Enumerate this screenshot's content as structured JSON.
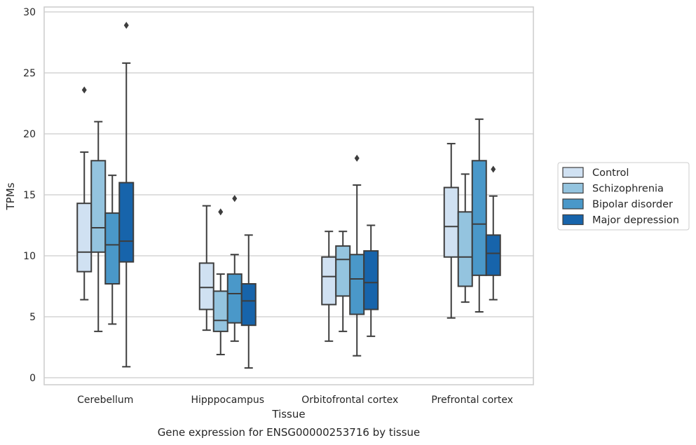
{
  "chart_data": {
    "type": "box",
    "xlabel": "Tissue",
    "ylabel": "TPMs",
    "caption": "Gene expression for ENSG00000253716 by tissue",
    "ylim": [
      -0.5,
      30.3
    ],
    "yticks": [
      0,
      5,
      10,
      15,
      20,
      25,
      30
    ],
    "grid": "horizontal",
    "legend_position": "right-outside",
    "categories": [
      "Cerebellum",
      "Hipppocampus",
      "Orbitofrontal cortex",
      "Prefrontal cortex"
    ],
    "series": [
      {
        "name": "Control",
        "color": "#d0e1f2",
        "boxes": [
          {
            "whislo": 6.4,
            "q1": 8.7,
            "med": 10.3,
            "q3": 14.3,
            "whishi": 18.5,
            "fliers": [
              23.6
            ]
          },
          {
            "whislo": 3.9,
            "q1": 5.6,
            "med": 7.4,
            "q3": 9.4,
            "whishi": 14.1,
            "fliers": []
          },
          {
            "whislo": 3.0,
            "q1": 6.0,
            "med": 8.3,
            "q3": 9.9,
            "whishi": 12.0,
            "fliers": []
          },
          {
            "whislo": 4.9,
            "q1": 9.9,
            "med": 12.4,
            "q3": 15.6,
            "whishi": 19.2,
            "fliers": []
          }
        ]
      },
      {
        "name": "Schizophrenia",
        "color": "#94c4df",
        "boxes": [
          {
            "whislo": 3.8,
            "q1": 10.3,
            "med": 12.3,
            "q3": 17.8,
            "whishi": 21.0,
            "fliers": []
          },
          {
            "whislo": 1.9,
            "q1": 3.8,
            "med": 4.7,
            "q3": 7.1,
            "whishi": 8.5,
            "fliers": [
              13.6
            ]
          },
          {
            "whislo": 3.8,
            "q1": 6.7,
            "med": 9.7,
            "q3": 10.8,
            "whishi": 12.0,
            "fliers": []
          },
          {
            "whislo": 6.2,
            "q1": 7.5,
            "med": 9.9,
            "q3": 13.6,
            "whishi": 16.7,
            "fliers": []
          }
        ]
      },
      {
        "name": "Bipolar disorder",
        "color": "#4a98c9",
        "boxes": [
          {
            "whislo": 4.4,
            "q1": 7.7,
            "med": 10.9,
            "q3": 13.5,
            "whishi": 16.6,
            "fliers": []
          },
          {
            "whislo": 3.0,
            "q1": 4.5,
            "med": 6.9,
            "q3": 8.5,
            "whishi": 10.1,
            "fliers": [
              14.7
            ]
          },
          {
            "whislo": 1.8,
            "q1": 5.2,
            "med": 8.1,
            "q3": 10.1,
            "whishi": 15.8,
            "fliers": [
              18.0
            ]
          },
          {
            "whislo": 5.4,
            "q1": 8.4,
            "med": 12.6,
            "q3": 17.8,
            "whishi": 21.2,
            "fliers": []
          }
        ]
      },
      {
        "name": "Major depression",
        "color": "#1764ab",
        "boxes": [
          {
            "whislo": 0.9,
            "q1": 9.5,
            "med": 11.2,
            "q3": 16.0,
            "whishi": 25.8,
            "fliers": [
              28.9
            ]
          },
          {
            "whislo": 0.8,
            "q1": 4.3,
            "med": 6.3,
            "q3": 7.7,
            "whishi": 11.7,
            "fliers": []
          },
          {
            "whislo": 3.4,
            "q1": 5.6,
            "med": 7.8,
            "q3": 10.4,
            "whishi": 12.5,
            "fliers": []
          },
          {
            "whislo": 6.4,
            "q1": 8.4,
            "med": 10.2,
            "q3": 11.7,
            "whishi": 14.9,
            "fliers": [
              17.1
            ]
          }
        ]
      }
    ]
  }
}
